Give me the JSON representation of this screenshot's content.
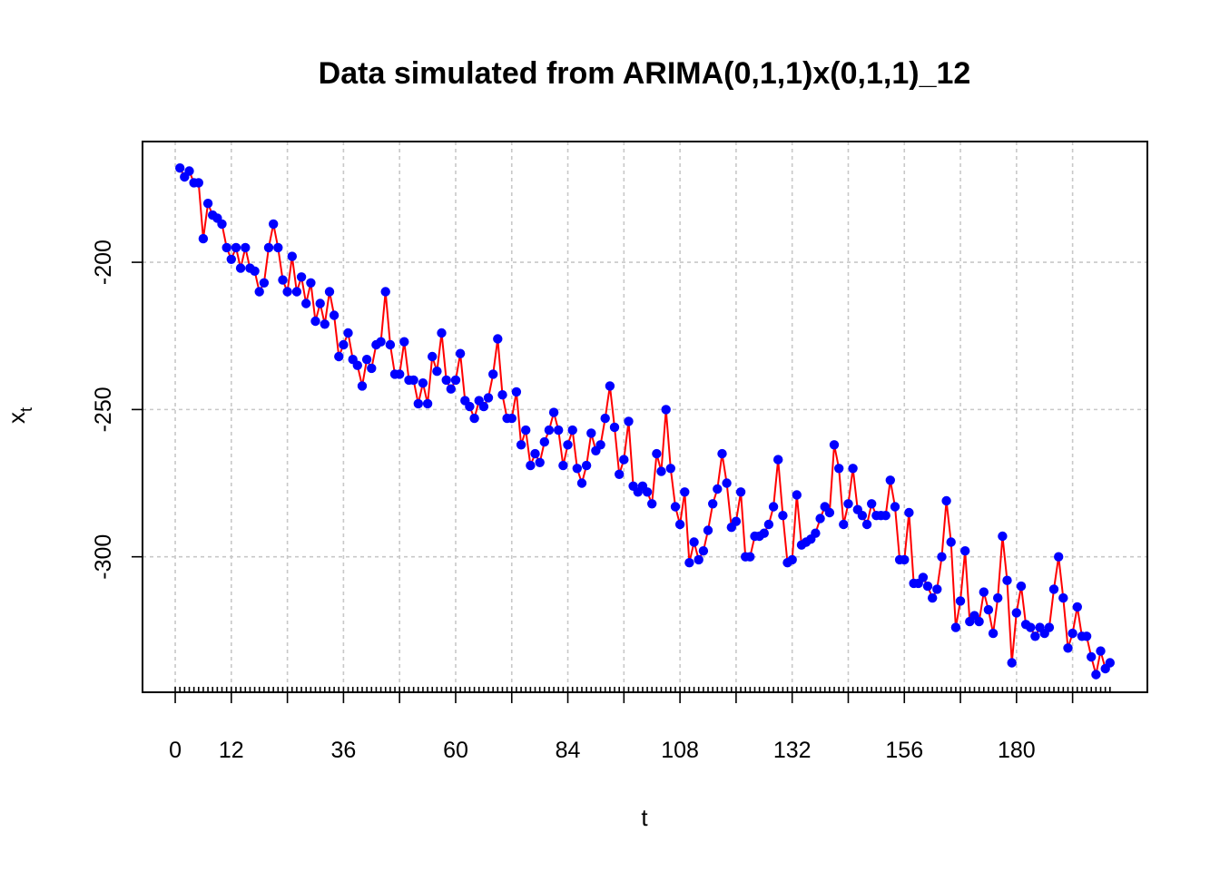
{
  "chart_data": {
    "type": "line",
    "title": "Data simulated from ARIMA(0,1,1)x(0,1,1)_12",
    "xlabel": "t",
    "ylabel": "x",
    "ylabel_subscript": "t",
    "xlim": [
      -7,
      208
    ],
    "ylim": [
      -346,
      -159
    ],
    "x_ticks": [
      0,
      12,
      36,
      60,
      84,
      108,
      132,
      156,
      180
    ],
    "x_tick_labels": [
      "0",
      "12",
      "36",
      "60",
      "84",
      "108",
      "132",
      "156",
      "180"
    ],
    "x_major_tick_marks": [
      0,
      12,
      24,
      36,
      48,
      60,
      72,
      84,
      96,
      108,
      120,
      132,
      144,
      156,
      168,
      180,
      192
    ],
    "x_minor_tick_marks_step": 1,
    "x_minor_tick_marks_range": [
      0,
      200
    ],
    "y_ticks": [
      -200,
      -250,
      -300
    ],
    "y_tick_labels": [
      "-200",
      "-250",
      "-300"
    ],
    "grid": true,
    "line_color": "#ff0000",
    "point_color": "#0000ff",
    "series": [
      {
        "x": [
          1,
          2,
          3,
          4,
          5,
          6,
          7,
          8,
          9,
          10,
          11,
          12,
          13,
          14,
          15,
          16,
          17,
          18,
          19,
          20,
          21,
          22,
          23,
          24,
          25,
          26,
          27,
          28,
          29,
          30,
          31,
          32,
          33,
          34,
          35,
          36,
          37,
          38,
          39,
          40,
          41,
          42,
          43,
          44,
          45,
          46,
          47,
          48,
          49,
          50,
          51,
          52,
          53,
          54,
          55,
          56,
          57,
          58,
          59,
          60,
          61,
          62,
          63,
          64,
          65,
          66,
          67,
          68,
          69,
          70,
          71,
          72,
          73,
          74,
          75,
          76,
          77,
          78,
          79,
          80,
          81,
          82,
          83,
          84,
          85,
          86,
          87,
          88,
          89,
          90,
          91,
          92,
          93,
          94,
          95,
          96,
          97,
          98,
          99,
          100,
          101,
          102,
          103,
          104,
          105,
          106,
          107,
          108,
          109,
          110,
          111,
          112,
          113,
          114,
          115,
          116,
          117,
          118,
          119,
          120,
          121,
          122,
          123,
          124,
          125,
          126,
          127,
          128,
          129,
          130,
          131,
          132,
          133,
          134,
          135,
          136,
          137,
          138,
          139,
          140,
          141,
          142,
          143,
          144,
          145,
          146,
          147,
          148,
          149,
          150,
          151,
          152,
          153,
          154,
          155,
          156,
          157,
          158,
          159,
          160,
          161,
          162,
          163,
          164,
          165,
          166,
          167,
          168,
          169,
          170,
          171,
          172,
          173,
          174,
          175,
          176,
          177,
          178,
          179,
          180,
          181,
          182,
          183,
          184,
          185,
          186,
          187,
          188,
          189,
          190,
          191,
          192,
          193,
          194,
          195,
          196,
          197,
          198,
          199,
          200
        ],
        "values": [
          -168,
          -171,
          -169,
          -173,
          -173,
          -192,
          -180,
          -184,
          -185,
          -187,
          -195,
          -199,
          -195,
          -202,
          -195,
          -202,
          -203,
          -210,
          -207,
          -195,
          -187,
          -195,
          -206,
          -210,
          -198,
          -210,
          -205,
          -214,
          -207,
          -220,
          -214,
          -221,
          -210,
          -218,
          -232,
          -228,
          -224,
          -233,
          -235,
          -242,
          -233,
          -236,
          -228,
          -227,
          -210,
          -228,
          -238,
          -238,
          -227,
          -240,
          -240,
          -248,
          -241,
          -248,
          -232,
          -237,
          -224,
          -240,
          -243,
          -240,
          -231,
          -247,
          -249,
          -253,
          -247,
          -249,
          -246,
          -238,
          -226,
          -245,
          -253,
          -253,
          -244,
          -262,
          -257,
          -269,
          -265,
          -268,
          -261,
          -257,
          -251,
          -257,
          -269,
          -262,
          -257,
          -270,
          -275,
          -269,
          -258,
          -264,
          -262,
          -253,
          -242,
          -256,
          -272,
          -267,
          -254,
          -276,
          -278,
          -276,
          -278,
          -282,
          -265,
          -271,
          -250,
          -270,
          -283,
          -289,
          -278,
          -302,
          -295,
          -301,
          -298,
          -291,
          -282,
          -277,
          -265,
          -275,
          -290,
          -288,
          -278,
          -300,
          -300,
          -293,
          -293,
          -292,
          -289,
          -283,
          -267,
          -286,
          -302,
          -301,
          -279,
          -296,
          -295,
          -294,
          -292,
          -287,
          -283,
          -285,
          -262,
          -270,
          -289,
          -282,
          -270,
          -284,
          -286,
          -289,
          -282,
          -286,
          -286,
          -286,
          -274,
          -283,
          -301,
          -301,
          -285,
          -309,
          -309,
          -307,
          -310,
          -314,
          -311,
          -300,
          -281,
          -295,
          -324,
          -315,
          -298,
          -322,
          -320,
          -322,
          -312,
          -318,
          -326,
          -314,
          -293,
          -308,
          -336,
          -319,
          -310,
          -323,
          -324,
          -327,
          -324,
          -326,
          -324,
          -311,
          -300,
          -314,
          -331,
          -326,
          -317,
          -327,
          -327,
          -334,
          -340,
          -332,
          -338,
          -336
        ]
      }
    ]
  }
}
